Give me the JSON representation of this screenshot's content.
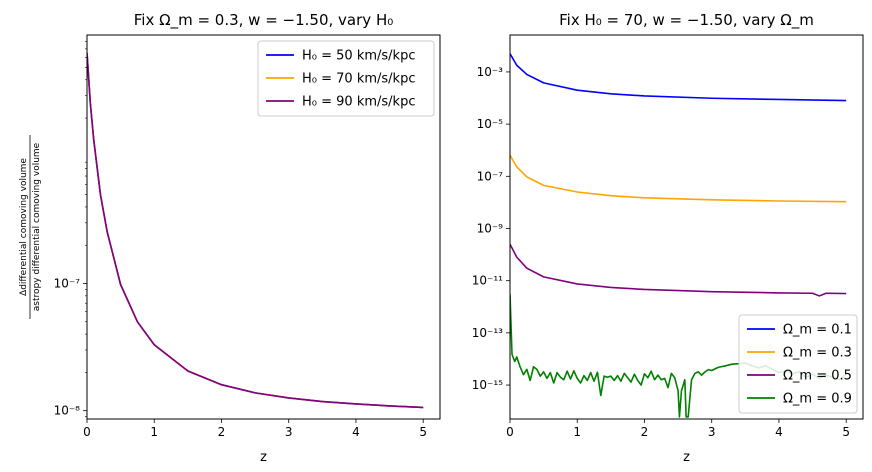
{
  "chart_data": [
    {
      "type": "line",
      "title": "Fix Ω_m = 0.3, w = −1.50, vary H₀",
      "xlabel": "z",
      "ylabel": "Δdifferential comoving volume / astropy differential comoving volume",
      "ylabel_numerator": "Δdifferential comoving volume",
      "ylabel_denominator": "astropy differential comoving volume",
      "yscale": "log",
      "xlim": [
        0,
        5.25
      ],
      "ylim": [
        8.6e-09,
        9e-06
      ],
      "x_ticks": [
        0,
        1,
        2,
        3,
        4,
        5
      ],
      "x_tick_labels": [
        "0",
        "1",
        "2",
        "3",
        "4",
        "5"
      ],
      "y_ticks": [
        1e-08,
        1e-07
      ],
      "y_tick_labels": [
        "10⁻⁸",
        "10⁻⁷"
      ],
      "grid": false,
      "legend_position": "top-right",
      "x": [
        0,
        0.05,
        0.1,
        0.2,
        0.3,
        0.5,
        0.75,
        1,
        1.5,
        2,
        2.5,
        3,
        3.5,
        4,
        4.5,
        5
      ],
      "series": [
        {
          "name": "H₀ = 50 km/s/kpc",
          "color": "#0000ff",
          "values": [
            6.5e-06,
            2.6e-06,
            1.35e-06,
            5e-07,
            2.55e-07,
            9.8e-08,
            5e-08,
            3.3e-08,
            2.05e-08,
            1.6e-08,
            1.38e-08,
            1.26e-08,
            1.18e-08,
            1.13e-08,
            1.09e-08,
            1.06e-08
          ]
        },
        {
          "name": "H₀ = 70 km/s/kpc",
          "color": "#ffa500",
          "values": [
            6.5e-06,
            2.6e-06,
            1.35e-06,
            5e-07,
            2.55e-07,
            9.8e-08,
            5e-08,
            3.3e-08,
            2.05e-08,
            1.6e-08,
            1.38e-08,
            1.26e-08,
            1.18e-08,
            1.13e-08,
            1.09e-08,
            1.06e-08
          ]
        },
        {
          "name": "H₀ = 90 km/s/kpc",
          "color": "#800080",
          "values": [
            6.5e-06,
            2.6e-06,
            1.35e-06,
            5e-07,
            2.55e-07,
            9.8e-08,
            5e-08,
            3.3e-08,
            2.05e-08,
            1.6e-08,
            1.38e-08,
            1.26e-08,
            1.18e-08,
            1.13e-08,
            1.09e-08,
            1.06e-08
          ]
        }
      ]
    },
    {
      "type": "line",
      "title": "Fix H₀ = 70, w = −1.50, vary Ω_m",
      "xlabel": "z",
      "ylabel": "",
      "yscale": "log",
      "xlim": [
        0,
        5.25
      ],
      "ylim": [
        5e-17,
        0.026
      ],
      "x_ticks": [
        0,
        1,
        2,
        3,
        4,
        5
      ],
      "x_tick_labels": [
        "0",
        "1",
        "2",
        "3",
        "4",
        "5"
      ],
      "y_ticks": [
        1e-15,
        1e-13,
        1e-11,
        1e-09,
        1e-07,
        1e-05,
        0.001
      ],
      "y_tick_labels": [
        "10⁻¹⁵",
        "10⁻¹³",
        "10⁻¹¹",
        "10⁻⁹",
        "10⁻⁷",
        "10⁻⁵",
        "10⁻³"
      ],
      "grid": false,
      "legend_position": "bottom-right",
      "series": [
        {
          "name": "Ω_m = 0.1",
          "color": "#0000ff",
          "x": [
            0,
            0.1,
            0.25,
            0.5,
            1,
            1.5,
            2,
            3,
            4,
            5
          ],
          "values": [
            0.005,
            0.0018,
            0.0008,
            0.00038,
            0.0002,
            0.000145,
            0.00012,
            9.8e-05,
            8.8e-05,
            8e-05
          ]
        },
        {
          "name": "Ω_m = 0.3",
          "color": "#ffa500",
          "x": [
            0,
            0.1,
            0.25,
            0.5,
            1,
            1.5,
            2,
            3,
            4,
            5
          ],
          "values": [
            6.5e-07,
            2.3e-07,
            9.5e-08,
            4.5e-08,
            2.5e-08,
            1.8e-08,
            1.5e-08,
            1.25e-08,
            1.13e-08,
            1.06e-08
          ]
        },
        {
          "name": "Ω_m = 0.5",
          "color": "#800080",
          "x": [
            0,
            0.1,
            0.25,
            0.5,
            1,
            1.5,
            2,
            3,
            4,
            4.5,
            4.6,
            4.7,
            5
          ],
          "values": [
            2.5e-10,
            8e-11,
            3e-11,
            1.4e-11,
            7.5e-12,
            5.5e-12,
            4.6e-12,
            3.8e-12,
            3.4e-12,
            3.3e-12,
            2.6e-12,
            3.3e-12,
            3.2e-12
          ]
        },
        {
          "name": "Ω_m = 0.9",
          "color": "#008000",
          "x": [
            0,
            0.03,
            0.07,
            0.1,
            0.15,
            0.2,
            0.25,
            0.3,
            0.35,
            0.4,
            0.45,
            0.5,
            0.55,
            0.6,
            0.65,
            0.7,
            0.75,
            0.8,
            0.85,
            0.9,
            0.95,
            1.0,
            1.05,
            1.1,
            1.15,
            1.2,
            1.25,
            1.3,
            1.35,
            1.4,
            1.45,
            1.5,
            1.55,
            1.6,
            1.65,
            1.7,
            1.75,
            1.8,
            1.85,
            1.9,
            1.95,
            2.0,
            2.05,
            2.1,
            2.15,
            2.2,
            2.25,
            2.3,
            2.35,
            2.4,
            2.45,
            2.5,
            2.52,
            2.55,
            2.6,
            2.62,
            2.65,
            2.7,
            2.75,
            2.8,
            2.85,
            2.9,
            2.95,
            3.0,
            3.1,
            3.2,
            3.3,
            3.4,
            3.5,
            3.6,
            3.7,
            3.8,
            3.9,
            4.0,
            4.1,
            4.2,
            4.3,
            4.4,
            4.5,
            4.6,
            4.7,
            4.8,
            4.9,
            5.0
          ],
          "values": [
            3e-12,
            1.5e-14,
            8e-15,
            1.2e-14,
            5e-15,
            2.5e-15,
            4e-15,
            1.5e-15,
            5e-15,
            4e-15,
            2.2e-15,
            3.2e-15,
            1.8e-15,
            3e-15,
            1.2e-15,
            3e-15,
            2e-15,
            1.6e-15,
            3.4e-15,
            1.7e-15,
            3.5e-15,
            1.8e-15,
            1.2e-15,
            2.3e-15,
            1.5e-15,
            3e-15,
            1.4e-15,
            3.1e-15,
            4e-16,
            2.2e-15,
            2e-15,
            2.2e-15,
            1.5e-15,
            2.3e-15,
            1.4e-15,
            2.8e-15,
            1.9e-15,
            1.3e-15,
            2.6e-15,
            1.5e-15,
            1e-15,
            2.7e-15,
            1.9e-15,
            3.4e-15,
            1.6e-15,
            2.4e-15,
            1.6e-15,
            1.8e-15,
            8e-16,
            2.8e-15,
            1.9e-15,
            6e-16,
            6e-17,
            6e-16,
            1.6e-15,
            6e-17,
            6e-17,
            1.6e-15,
            2.8e-15,
            3.2e-15,
            2.4e-15,
            3.2e-15,
            3.9e-15,
            3.6e-15,
            4.8e-15,
            5.4e-15,
            6.3e-15,
            6.6e-15,
            7e-15,
            5.5e-15,
            4.5e-15,
            5.5e-15,
            4e-15,
            3e-15,
            3.5e-15,
            2.8e-15,
            3.2e-15,
            2e-15,
            2.6e-15,
            1.8e-15,
            2.4e-15,
            2e-15,
            1.6e-15,
            2.6e-15
          ]
        }
      ]
    }
  ]
}
